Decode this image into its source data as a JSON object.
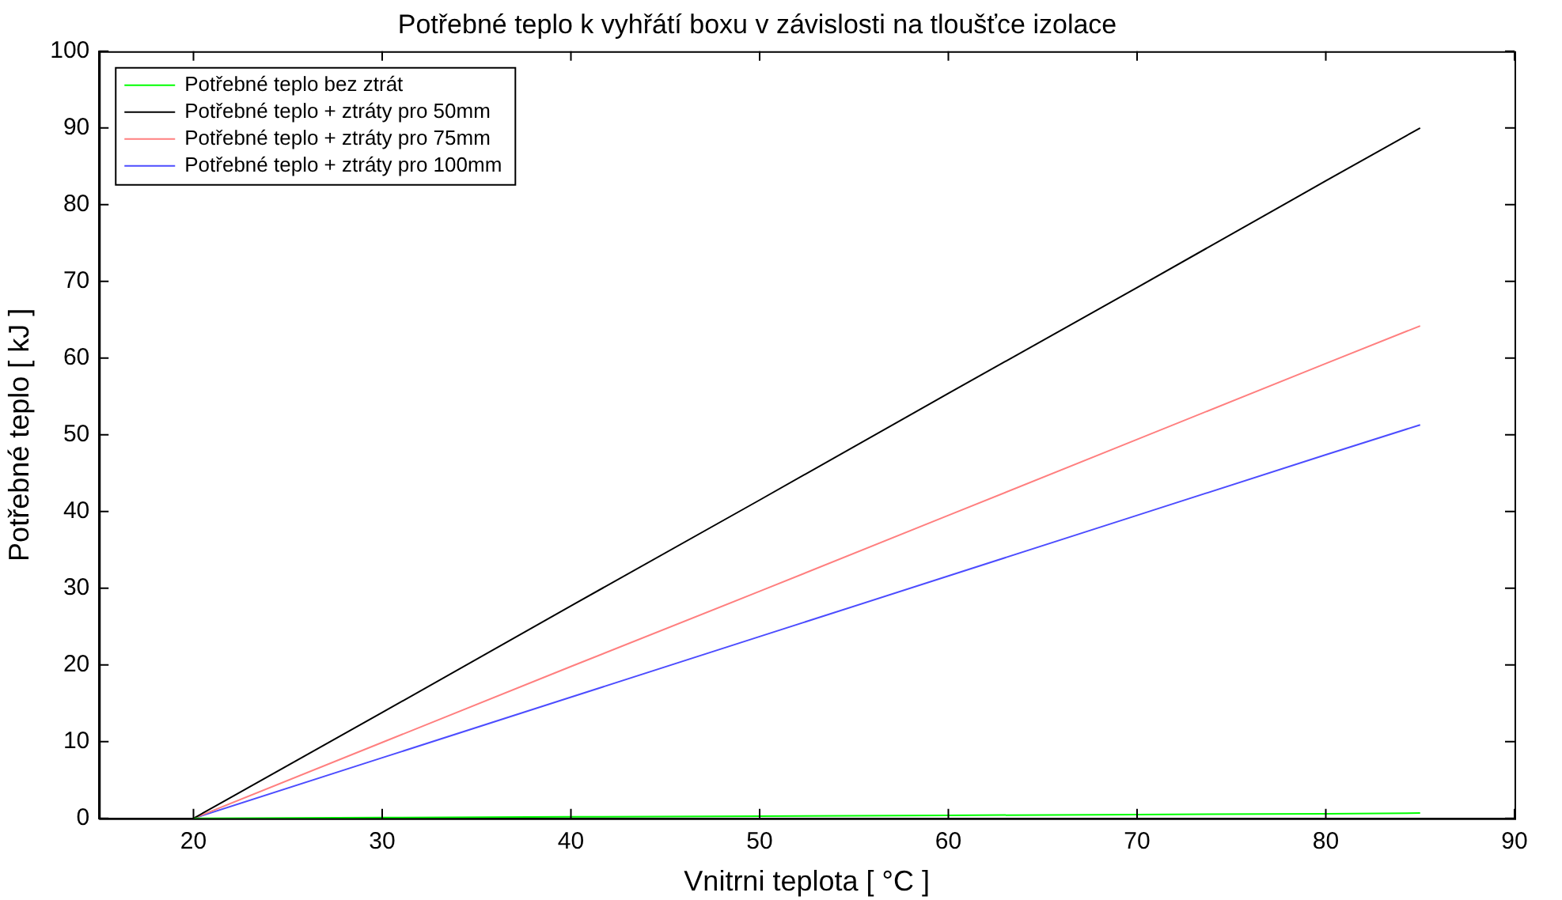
{
  "chart_data": {
    "type": "line",
    "title": "Potřebné teplo k vyhřátí boxu v závislosti na tloušťce izolace",
    "xlabel": "Vnitrni teplota [ °C ]",
    "ylabel": "Potřebné teplo [ kJ ]",
    "x": [
      20,
      30,
      40,
      50,
      60,
      70,
      80,
      85
    ],
    "series": [
      {
        "name": "Potřebné teplo bez ztrát",
        "color": "#00ff00",
        "values": [
          0,
          0.1,
          0.2,
          0.3,
          0.4,
          0.5,
          0.6,
          0.7
        ]
      },
      {
        "name": "Potřebné teplo + ztráty pro 50mm",
        "color": "#000000",
        "values": [
          0,
          13.8,
          27.7,
          41.5,
          55.4,
          69.2,
          83.1,
          90
        ]
      },
      {
        "name": "Potřebné teplo + ztráty pro 75mm",
        "color": "#ff7f7f",
        "values": [
          0,
          9.9,
          19.8,
          29.6,
          39.5,
          49.4,
          59.3,
          64.2
        ]
      },
      {
        "name": "Potřebné teplo + ztráty pro 100mm",
        "color": "#4c4cff",
        "values": [
          0,
          7.9,
          15.8,
          23.7,
          31.6,
          39.5,
          47.4,
          51.3
        ]
      }
    ],
    "xlim": [
      15,
      90
    ],
    "xticks": [
      20,
      30,
      40,
      50,
      60,
      70,
      80,
      90
    ],
    "ylim": [
      0,
      100
    ],
    "yticks": [
      0,
      10,
      20,
      30,
      40,
      50,
      60,
      70,
      80,
      90,
      100
    ],
    "grid": false,
    "legend": "top left",
    "marker": "none",
    "line_style": "solid"
  }
}
